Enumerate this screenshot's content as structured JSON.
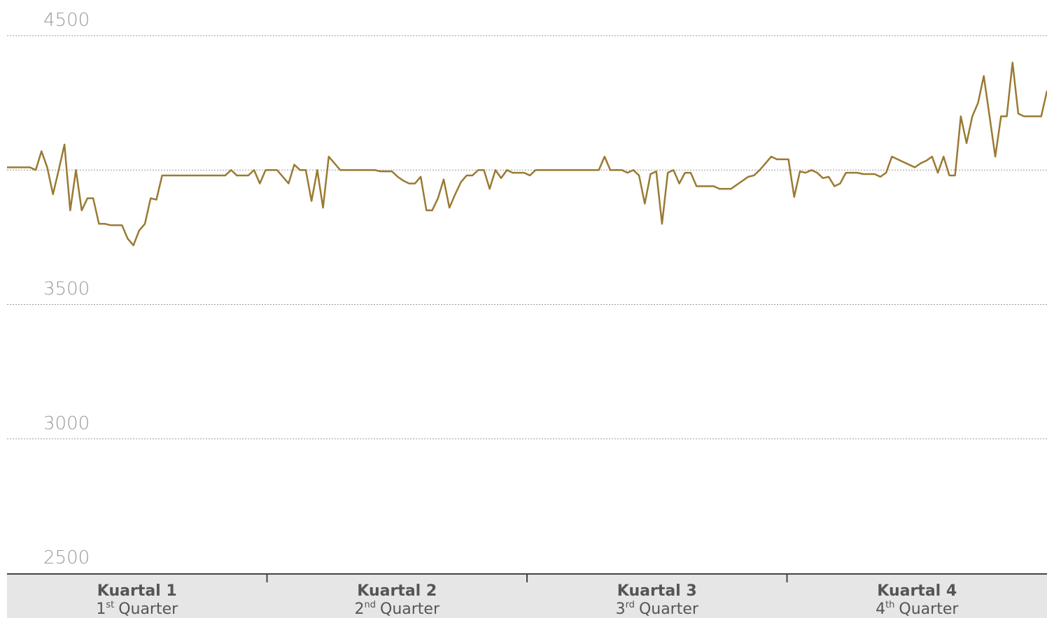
{
  "chart_data": {
    "type": "line",
    "color": "#9a7a32",
    "ylim": [
      2500,
      4500
    ],
    "yticks": [
      2500,
      3000,
      3500,
      4500
    ],
    "gridlines": [
      3000,
      3500,
      4000,
      4500
    ],
    "grid": true,
    "quarters": [
      {
        "name": "Kuartal 1",
        "num": "1",
        "suffix": "st",
        "word": "Quarter"
      },
      {
        "name": "Kuartal 2",
        "num": "2",
        "suffix": "nd",
        "word": "Quarter"
      },
      {
        "name": "Kuartal 3",
        "num": "3",
        "suffix": "rd",
        "word": "Quarter"
      },
      {
        "name": "Kuartal 4",
        "num": "4",
        "suffix": "th",
        "word": "Quarter"
      }
    ],
    "values": [
      4010,
      4010,
      4010,
      4010,
      4010,
      4000,
      4070,
      4010,
      3910,
      4000,
      4095,
      3850,
      4000,
      3850,
      3895,
      3895,
      3800,
      3800,
      3795,
      3795,
      3795,
      3745,
      3720,
      3775,
      3800,
      3895,
      3890,
      3980,
      3980,
      3980,
      3980,
      3980,
      3980,
      3980,
      3980,
      3980,
      3980,
      3980,
      3980,
      4000,
      3980,
      3980,
      3980,
      4000,
      3950,
      4000,
      4000,
      4000,
      3975,
      3950,
      4020,
      4000,
      4000,
      3885,
      4000,
      3860,
      4050,
      4025,
      4000,
      4000,
      4000,
      4000,
      4000,
      4000,
      4000,
      3995,
      3995,
      3995,
      3975,
      3960,
      3950,
      3950,
      3975,
      3850,
      3850,
      3895,
      3965,
      3860,
      3910,
      3955,
      3980,
      3980,
      4000,
      4000,
      3930,
      4000,
      3970,
      4000,
      3990,
      3990,
      3990,
      3980,
      4000,
      4000,
      4000,
      4000,
      4000,
      4000,
      4000,
      4000,
      4000,
      4000,
      4000,
      4000,
      4050,
      4000,
      4000,
      4000,
      3990,
      4000,
      3980,
      3875,
      3985,
      3995,
      3800,
      3990,
      4000,
      3950,
      3990,
      3990,
      3940,
      3940,
      3940,
      3940,
      3930,
      3930,
      3930,
      3945,
      3960,
      3975,
      3980,
      4000,
      4025,
      4050,
      4040,
      4040,
      4040,
      3900,
      3995,
      3990,
      4000,
      3990,
      3970,
      3975,
      3940,
      3950,
      3990,
      3990,
      3990,
      3985,
      3985,
      3985,
      3975,
      3990,
      4050,
      4040,
      4030,
      4020,
      4010,
      4025,
      4035,
      4050,
      3990,
      4050,
      3980,
      3980,
      4200,
      4100,
      4200,
      4250,
      4350,
      4200,
      4050,
      4200,
      4200,
      4400,
      4210,
      4200,
      4200,
      4200,
      4200,
      4295
    ]
  }
}
